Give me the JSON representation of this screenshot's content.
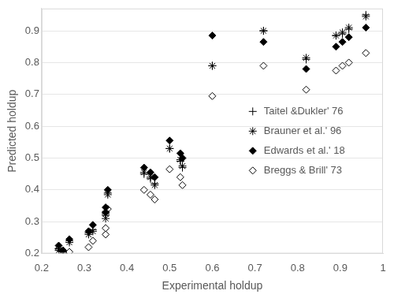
{
  "chart_data": {
    "type": "scatter",
    "x_label": "Experimental holdup",
    "y_label": "Predicted holdup",
    "xlim": [
      0.2,
      1
    ],
    "xticks": [
      0.2,
      0.3,
      0.4,
      0.5,
      0.6,
      0.7,
      0.8,
      0.9,
      1
    ],
    "ylim": [
      0.2,
      0.97
    ],
    "yticks": [
      0.2,
      0.3,
      0.4,
      0.5,
      0.6,
      0.7,
      0.8,
      0.9
    ],
    "grid": true,
    "legend": "right",
    "x": [
      0.24,
      0.25,
      0.265,
      0.31,
      0.32,
      0.35,
      0.35,
      0.355,
      0.44,
      0.455,
      0.465,
      0.5,
      0.525,
      0.53,
      0.6,
      0.72,
      0.82,
      0.89,
      0.905,
      0.92,
      0.96
    ],
    "series": [
      {
        "name": "Taitel &Dukler' 76",
        "color": "#000000",
        "marker": "plus",
        "values": [
          0.215,
          0.205,
          0.24,
          0.265,
          0.275,
          0.32,
          0.33,
          0.39,
          0.45,
          0.435,
          0.42,
          0.53,
          0.49,
          0.47,
          0.79,
          0.9,
          0.81,
          0.885,
          0.89,
          0.905,
          0.95
        ]
      },
      {
        "name": "Brauner et al.' 96",
        "color": "#000000",
        "marker": "star",
        "values": [
          0.21,
          0.2,
          0.235,
          0.26,
          0.27,
          0.31,
          0.325,
          0.385,
          0.455,
          0.44,
          0.415,
          0.53,
          0.495,
          0.475,
          0.79,
          0.9,
          0.815,
          0.885,
          0.895,
          0.91,
          0.945
        ]
      },
      {
        "name": "Edwards et al.' 18",
        "color": "#000000",
        "marker": "diamond",
        "values": [
          0.225,
          0.21,
          0.245,
          0.27,
          0.29,
          0.33,
          0.345,
          0.4,
          0.47,
          0.455,
          0.44,
          0.555,
          0.515,
          0.5,
          0.885,
          0.865,
          0.78,
          0.85,
          0.865,
          0.88,
          0.91
        ]
      },
      {
        "name": "Breggs & Brill' 73",
        "color": "#000000",
        "marker": "open diamond",
        "values": [
          0.215,
          0.2,
          0.205,
          0.22,
          0.24,
          0.26,
          0.28,
          0.34,
          0.4,
          0.385,
          0.37,
          0.465,
          0.44,
          0.415,
          0.695,
          0.79,
          0.715,
          0.775,
          0.79,
          0.8,
          0.83
        ]
      }
    ]
  }
}
